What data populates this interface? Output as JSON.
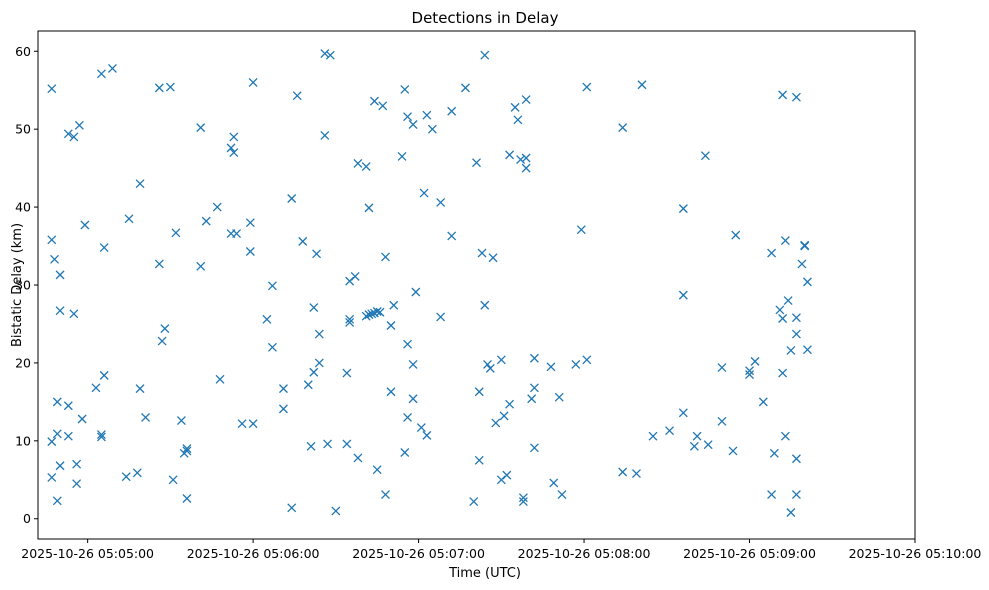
{
  "chart_data": {
    "type": "scatter",
    "title": "Detections in Delay",
    "xlabel": "Time (UTC)",
    "ylabel": "Bistatic Delay (km)",
    "marker": "x",
    "color": "#1f77b4",
    "grid": false,
    "xlim": [
      "2025-10-26 05:04:42",
      "2025-10-26 05:10:00"
    ],
    "ylim": [
      -2.6,
      62.6
    ],
    "x_ticks": [
      "2025-10-26 05:05:00",
      "2025-10-26 05:06:00",
      "2025-10-26 05:07:00",
      "2025-10-26 05:08:00",
      "2025-10-26 05:09:00",
      "2025-10-26 05:10:00"
    ],
    "y_ticks": [
      0,
      10,
      20,
      30,
      40,
      50,
      60
    ],
    "points": [
      [
        "05:04:47",
        55.2
      ],
      [
        "05:04:47",
        35.8
      ],
      [
        "05:04:47",
        9.9
      ],
      [
        "05:04:47",
        5.3
      ],
      [
        "05:04:48",
        33.3
      ],
      [
        "05:04:49",
        10.9
      ],
      [
        "05:04:49",
        15.0
      ],
      [
        "05:04:49",
        2.3
      ],
      [
        "05:04:50",
        31.3
      ],
      [
        "05:04:50",
        26.7
      ],
      [
        "05:04:50",
        6.8
      ],
      [
        "05:04:53",
        49.4
      ],
      [
        "05:04:53",
        14.5
      ],
      [
        "05:04:53",
        10.6
      ],
      [
        "05:04:55",
        49.0
      ],
      [
        "05:04:55",
        26.3
      ],
      [
        "05:04:56",
        7.0
      ],
      [
        "05:04:56",
        4.5
      ],
      [
        "05:04:57",
        50.5
      ],
      [
        "05:04:58",
        12.8
      ],
      [
        "05:04:59",
        37.7
      ],
      [
        "05:05:03",
        16.8
      ],
      [
        "05:05:05",
        57.1
      ],
      [
        "05:05:05",
        10.8
      ],
      [
        "05:05:05",
        10.5
      ],
      [
        "05:05:06",
        34.8
      ],
      [
        "05:05:06",
        18.4
      ],
      [
        "05:05:09",
        57.8
      ],
      [
        "05:05:14",
        5.4
      ],
      [
        "05:05:15",
        38.5
      ],
      [
        "05:05:18",
        5.9
      ],
      [
        "05:05:19",
        43.0
      ],
      [
        "05:05:19",
        16.7
      ],
      [
        "05:05:21",
        13.0
      ],
      [
        "05:05:26",
        55.3
      ],
      [
        "05:05:26",
        32.7
      ],
      [
        "05:05:27",
        22.8
      ],
      [
        "05:05:28",
        24.4
      ],
      [
        "05:05:30",
        55.4
      ],
      [
        "05:05:31",
        5.0
      ],
      [
        "05:05:32",
        36.7
      ],
      [
        "05:05:34",
        12.6
      ],
      [
        "05:05:35",
        8.4
      ],
      [
        "05:05:36",
        9.0
      ],
      [
        "05:05:36",
        8.7
      ],
      [
        "05:05:36",
        2.6
      ],
      [
        "05:05:41",
        50.2
      ],
      [
        "05:05:41",
        32.4
      ],
      [
        "05:05:43",
        38.2
      ],
      [
        "05:05:47",
        40.0
      ],
      [
        "05:05:48",
        17.9
      ],
      [
        "05:05:52",
        47.6
      ],
      [
        "05:05:52",
        36.6
      ],
      [
        "05:05:53",
        49.0
      ],
      [
        "05:05:53",
        47.0
      ],
      [
        "05:05:54",
        36.6
      ],
      [
        "05:05:56",
        12.2
      ],
      [
        "05:05:59",
        34.3
      ],
      [
        "05:05:59",
        38.0
      ],
      [
        "05:06:00",
        56.0
      ],
      [
        "05:06:00",
        12.2
      ],
      [
        "05:06:05",
        25.6
      ],
      [
        "05:06:07",
        29.9
      ],
      [
        "05:06:07",
        22.0
      ],
      [
        "05:06:11",
        16.7
      ],
      [
        "05:06:11",
        14.1
      ],
      [
        "05:06:14",
        41.1
      ],
      [
        "05:06:14",
        1.4
      ],
      [
        "05:06:16",
        54.3
      ],
      [
        "05:06:18",
        35.6
      ],
      [
        "05:06:20",
        17.2
      ],
      [
        "05:06:21",
        9.3
      ],
      [
        "05:06:22",
        27.1
      ],
      [
        "05:06:22",
        18.8
      ],
      [
        "05:06:23",
        34.0
      ],
      [
        "05:06:24",
        20.0
      ],
      [
        "05:06:24",
        23.7
      ],
      [
        "05:06:26",
        49.2
      ],
      [
        "05:06:26",
        59.7
      ],
      [
        "05:06:27",
        9.6
      ],
      [
        "05:06:28",
        59.5
      ],
      [
        "05:06:30",
        1.0
      ],
      [
        "05:06:34",
        18.7
      ],
      [
        "05:06:34",
        9.6
      ],
      [
        "05:06:35",
        30.5
      ],
      [
        "05:06:35",
        25.6
      ],
      [
        "05:06:35",
        25.2
      ],
      [
        "05:06:37",
        31.1
      ],
      [
        "05:06:38",
        45.6
      ],
      [
        "05:06:38",
        7.8
      ],
      [
        "05:06:41",
        45.2
      ],
      [
        "05:06:41",
        26.0
      ],
      [
        "05:06:42",
        39.9
      ],
      [
        "05:06:42",
        26.2
      ],
      [
        "05:06:43",
        26.3
      ],
      [
        "05:06:44",
        53.6
      ],
      [
        "05:06:44",
        26.4
      ],
      [
        "05:06:45",
        26.6
      ],
      [
        "05:06:45",
        6.3
      ],
      [
        "05:06:46",
        26.5
      ],
      [
        "05:06:47",
        53.0
      ],
      [
        "05:06:48",
        33.6
      ],
      [
        "05:06:48",
        3.1
      ],
      [
        "05:06:50",
        24.8
      ],
      [
        "05:06:50",
        16.3
      ],
      [
        "05:06:51",
        27.4
      ],
      [
        "05:06:54",
        46.5
      ],
      [
        "05:06:55",
        55.1
      ],
      [
        "05:06:55",
        8.5
      ],
      [
        "05:06:56",
        51.6
      ],
      [
        "05:06:56",
        22.4
      ],
      [
        "05:06:56",
        13.0
      ],
      [
        "05:06:58",
        50.6
      ],
      [
        "05:06:58",
        19.8
      ],
      [
        "05:06:58",
        15.4
      ],
      [
        "05:06:59",
        29.1
      ],
      [
        "05:07:01",
        11.7
      ],
      [
        "05:07:02",
        41.8
      ],
      [
        "05:07:03",
        51.8
      ],
      [
        "05:07:03",
        10.7
      ],
      [
        "05:07:05",
        50.0
      ],
      [
        "05:07:08",
        40.6
      ],
      [
        "05:07:08",
        25.9
      ],
      [
        "05:07:12",
        52.3
      ],
      [
        "05:07:12",
        36.3
      ],
      [
        "05:07:17",
        55.3
      ],
      [
        "05:07:20",
        2.2
      ],
      [
        "05:07:21",
        45.7
      ],
      [
        "05:07:22",
        16.3
      ],
      [
        "05:07:22",
        7.5
      ],
      [
        "05:07:23",
        34.1
      ],
      [
        "05:07:24",
        59.5
      ],
      [
        "05:07:24",
        27.4
      ],
      [
        "05:07:25",
        19.8
      ],
      [
        "05:07:26",
        19.3
      ],
      [
        "05:07:27",
        33.5
      ],
      [
        "05:07:28",
        12.3
      ],
      [
        "05:07:30",
        5.0
      ],
      [
        "05:07:30",
        20.4
      ],
      [
        "05:07:31",
        13.2
      ],
      [
        "05:07:32",
        5.6
      ],
      [
        "05:07:33",
        46.7
      ],
      [
        "05:07:33",
        14.7
      ],
      [
        "05:07:35",
        52.8
      ],
      [
        "05:07:36",
        51.2
      ],
      [
        "05:07:37",
        46.1
      ],
      [
        "05:07:38",
        2.7
      ],
      [
        "05:07:38",
        2.2
      ],
      [
        "05:07:39",
        53.8
      ],
      [
        "05:07:39",
        46.3
      ],
      [
        "05:07:39",
        45.0
      ],
      [
        "05:07:41",
        15.4
      ],
      [
        "05:07:42",
        20.6
      ],
      [
        "05:07:42",
        16.8
      ],
      [
        "05:07:42",
        9.1
      ],
      [
        "05:07:48",
        19.5
      ],
      [
        "05:07:49",
        4.6
      ],
      [
        "05:07:51",
        15.6
      ],
      [
        "05:07:52",
        3.1
      ],
      [
        "05:07:57",
        19.8
      ],
      [
        "05:07:59",
        37.1
      ],
      [
        "05:08:01",
        20.4
      ],
      [
        "05:08:01",
        55.4
      ],
      [
        "05:08:14",
        50.2
      ],
      [
        "05:08:14",
        6.0
      ],
      [
        "05:08:19",
        5.8
      ],
      [
        "05:08:21",
        55.7
      ],
      [
        "05:08:25",
        10.6
      ],
      [
        "05:08:31",
        11.3
      ],
      [
        "05:08:36",
        13.6
      ],
      [
        "05:08:36",
        39.8
      ],
      [
        "05:08:36",
        28.7
      ],
      [
        "05:08:40",
        9.3
      ],
      [
        "05:08:41",
        10.6
      ],
      [
        "05:08:44",
        46.6
      ],
      [
        "05:08:45",
        9.5
      ],
      [
        "05:08:50",
        12.5
      ],
      [
        "05:08:50",
        19.4
      ],
      [
        "05:08:54",
        8.7
      ],
      [
        "05:08:55",
        36.4
      ],
      [
        "05:09:00",
        18.5
      ],
      [
        "05:09:00",
        19.0
      ],
      [
        "05:09:02",
        20.2
      ],
      [
        "05:09:05",
        15.0
      ],
      [
        "05:09:08",
        34.1
      ],
      [
        "05:09:08",
        3.1
      ],
      [
        "05:09:09",
        8.4
      ],
      [
        "05:09:11",
        26.8
      ],
      [
        "05:09:12",
        54.4
      ],
      [
        "05:09:12",
        25.7
      ],
      [
        "05:09:12",
        18.7
      ],
      [
        "05:09:13",
        35.7
      ],
      [
        "05:09:13",
        10.6
      ],
      [
        "05:09:14",
        28.0
      ],
      [
        "05:09:15",
        21.6
      ],
      [
        "05:09:15",
        0.8
      ],
      [
        "05:09:17",
        54.1
      ],
      [
        "05:09:17",
        25.8
      ],
      [
        "05:09:17",
        23.7
      ],
      [
        "05:09:17",
        7.7
      ],
      [
        "05:09:17",
        3.1
      ],
      [
        "05:09:19",
        32.7
      ],
      [
        "05:09:20",
        35.0
      ],
      [
        "05:09:20",
        35.1
      ],
      [
        "05:09:21",
        30.4
      ],
      [
        "05:09:21",
        21.7
      ]
    ]
  }
}
